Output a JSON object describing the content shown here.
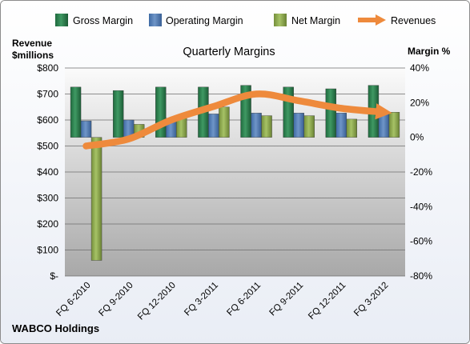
{
  "chart_data": {
    "type": "bar",
    "title": "Quarterly Margins",
    "company": "WABCO Holdings",
    "ylabel_left": "Revenue\n$millions",
    "ylabel_right": "Margin %",
    "categories": [
      "FQ 6-2010",
      "FQ 9-2010",
      "FQ 12-2010",
      "FQ 3-2011",
      "FQ 6-2011",
      "FQ 9-2011",
      "FQ 12-2011",
      "FQ 3-2012"
    ],
    "left_axis": {
      "min": 0,
      "max": 800,
      "step": 100,
      "tick_labels": [
        "$-",
        "$100",
        "$200",
        "$300",
        "$400",
        "$500",
        "$600",
        "$700",
        "$800"
      ]
    },
    "right_axis": {
      "min": -80,
      "max": 40,
      "step": 20,
      "tick_labels": [
        "-80%",
        "-60%",
        "-40%",
        "-20%",
        "0%",
        "20%",
        "40%"
      ]
    },
    "legend": {
      "position": "top"
    },
    "grid": true,
    "series": [
      {
        "name": "Gross Margin",
        "type": "bar",
        "axis": "right",
        "color": "#2e7d4f",
        "values": [
          29,
          27,
          29,
          29,
          30,
          29,
          28,
          30
        ]
      },
      {
        "name": "Operating Margin",
        "type": "bar",
        "axis": "right",
        "color": "#4f78b0",
        "values": [
          9.5,
          10,
          11,
          13.5,
          14,
          14,
          14,
          14.5
        ]
      },
      {
        "name": "Net Margin",
        "type": "bar",
        "axis": "right",
        "color": "#8aaa4c",
        "values": [
          -71,
          7.5,
          11,
          17.5,
          12.5,
          12.5,
          10.5,
          14.5
        ]
      },
      {
        "name": "Revenues",
        "type": "line",
        "axis": "left",
        "color": "#ee8a3c",
        "values": [
          500,
          527,
          600,
          652,
          700,
          674,
          645,
          630
        ]
      }
    ]
  }
}
